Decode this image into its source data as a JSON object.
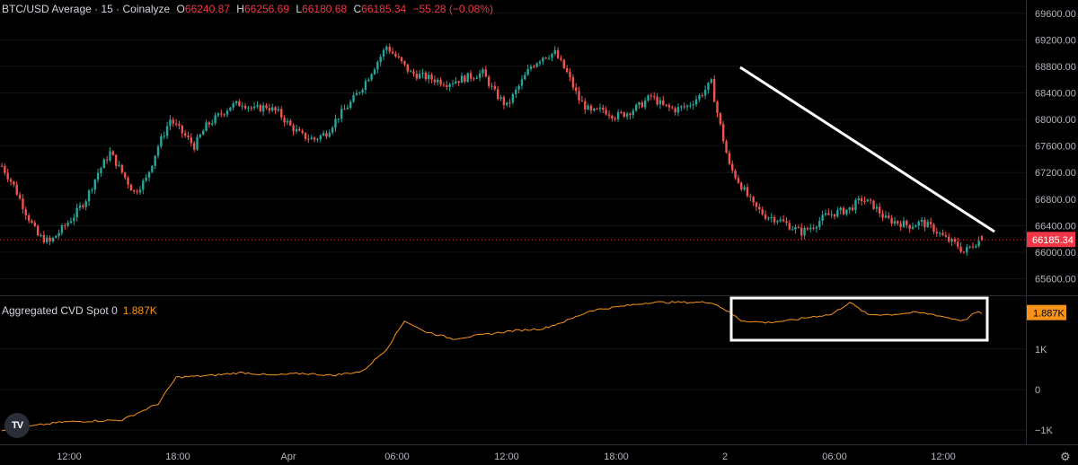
{
  "header": {
    "symbol": "BTC/USD Average · 15 · Coinalyze",
    "o_label": "O",
    "o": "66240.87",
    "h_label": "H",
    "h": "66256.69",
    "l_label": "L",
    "l": "66180.68",
    "c_label": "C",
    "c": "66185.34",
    "change": "−55.28 (−0.08%)"
  },
  "indicator": {
    "name": "Aggregated CVD Spot 0",
    "value": "1.887K"
  },
  "colors": {
    "up": "#26a69a",
    "down": "#ef5350",
    "cvd": "#f7931a",
    "price_label_bg": "#f23645",
    "cvd_label_bg": "#f7931a",
    "axis_text": "#b2b5be",
    "annotation": "#ffffff"
  },
  "icons": {
    "logo": "tradingview-logo-icon",
    "settings": "gear-icon"
  },
  "logo_text": "TV",
  "settings_glyph": "⚙",
  "chart_data": [
    {
      "type": "candlestick",
      "title": "BTC/USD Average · 15 · Coinalyze",
      "ylim": [
        65350,
        69800
      ],
      "y_ticks": [
        65600,
        66000,
        66400,
        66800,
        67200,
        67600,
        68000,
        68400,
        68800,
        69200,
        69600
      ],
      "y_tick_labels": [
        "65600.00",
        "66000.00",
        "66400.00",
        "66800.00",
        "67200.00",
        "67600.00",
        "68000.00",
        "68400.00",
        "68800.00",
        "69200.00",
        "69600.00"
      ],
      "x_tick_labels": [
        "12:00",
        "18:00",
        "Apr",
        "06:00",
        "12:00",
        "18:00",
        "2",
        "06:00",
        "12:00"
      ],
      "last_price": 66185.34,
      "last_price_label": "66185.34",
      "close_path": [
        [
          0,
          67300
        ],
        [
          4,
          67000
        ],
        [
          8,
          66600
        ],
        [
          12,
          66250
        ],
        [
          16,
          66150
        ],
        [
          20,
          66350
        ],
        [
          24,
          66550
        ],
        [
          28,
          66800
        ],
        [
          32,
          67200
        ],
        [
          36,
          67500
        ],
        [
          40,
          67200
        ],
        [
          44,
          66900
        ],
        [
          48,
          67100
        ],
        [
          52,
          67600
        ],
        [
          56,
          68000
        ],
        [
          60,
          67800
        ],
        [
          64,
          67600
        ],
        [
          68,
          67900
        ],
        [
          72,
          68050
        ],
        [
          76,
          68200
        ],
        [
          80,
          68250
        ],
        [
          84,
          68150
        ],
        [
          88,
          68200
        ],
        [
          92,
          68100
        ],
        [
          96,
          67900
        ],
        [
          100,
          67750
        ],
        [
          104,
          67700
        ],
        [
          108,
          67800
        ],
        [
          112,
          68050
        ],
        [
          116,
          68250
        ],
        [
          120,
          68500
        ],
        [
          124,
          68800
        ],
        [
          128,
          69100
        ],
        [
          132,
          68900
        ],
        [
          136,
          68700
        ],
        [
          140,
          68650
        ],
        [
          144,
          68600
        ],
        [
          148,
          68550
        ],
        [
          152,
          68600
        ],
        [
          156,
          68650
        ],
        [
          160,
          68700
        ],
        [
          164,
          68400
        ],
        [
          168,
          68200
        ],
        [
          172,
          68500
        ],
        [
          176,
          68800
        ],
        [
          180,
          68950
        ],
        [
          184,
          69000
        ],
        [
          188,
          68700
        ],
        [
          192,
          68300
        ],
        [
          196,
          68100
        ],
        [
          200,
          68150
        ],
        [
          204,
          68050
        ],
        [
          208,
          68100
        ],
        [
          212,
          68200
        ],
        [
          216,
          68350
        ],
        [
          220,
          68200
        ],
        [
          224,
          68150
        ],
        [
          228,
          68200
        ],
        [
          232,
          68350
        ],
        [
          236,
          68550
        ],
        [
          238,
          68100
        ],
        [
          240,
          67700
        ],
        [
          242,
          67300
        ],
        [
          246,
          67000
        ],
        [
          250,
          66700
        ],
        [
          254,
          66550
        ],
        [
          258,
          66500
        ],
        [
          262,
          66400
        ],
        [
          266,
          66300
        ],
        [
          270,
          66400
        ],
        [
          274,
          66550
        ],
        [
          278,
          66600
        ],
        [
          282,
          66650
        ],
        [
          286,
          66800
        ],
        [
          290,
          66700
        ],
        [
          294,
          66500
        ],
        [
          298,
          66450
        ],
        [
          302,
          66400
        ],
        [
          306,
          66450
        ],
        [
          310,
          66350
        ],
        [
          314,
          66200
        ],
        [
          318,
          66100
        ],
        [
          320,
          66000
        ],
        [
          324,
          66150
        ],
        [
          326,
          66185
        ]
      ],
      "n_candles": 327
    },
    {
      "type": "line",
      "title": "Aggregated CVD Spot 0",
      "series": [
        {
          "name": "Aggregated CVD Spot 0",
          "values_path": [
            [
              0,
              -1000
            ],
            [
              20,
              -800
            ],
            [
              40,
              -750
            ],
            [
              52,
              -350
            ],
            [
              58,
              300
            ],
            [
              70,
              350
            ],
            [
              80,
              420
            ],
            [
              90,
              350
            ],
            [
              100,
              400
            ],
            [
              110,
              350
            ],
            [
              120,
              450
            ],
            [
              128,
              1000
            ],
            [
              134,
              1700
            ],
            [
              140,
              1450
            ],
            [
              150,
              1250
            ],
            [
              160,
              1350
            ],
            [
              170,
              1450
            ],
            [
              180,
              1500
            ],
            [
              188,
              1700
            ],
            [
              196,
              1950
            ],
            [
              206,
              2050
            ],
            [
              216,
              2150
            ],
            [
              226,
              2150
            ],
            [
              236,
              2150
            ],
            [
              240,
              2000
            ],
            [
              246,
              1700
            ],
            [
              254,
              1650
            ],
            [
              262,
              1700
            ],
            [
              270,
              1800
            ],
            [
              276,
              1850
            ],
            [
              282,
              2150
            ],
            [
              288,
              1850
            ],
            [
              296,
              1850
            ],
            [
              304,
              1900
            ],
            [
              310,
              1850
            ],
            [
              316,
              1750
            ],
            [
              320,
              1700
            ],
            [
              324,
              1900
            ],
            [
              326,
              1887
            ]
          ]
        }
      ],
      "ylim": [
        -1350,
        2300
      ],
      "y_tick_labels": [
        "−1K",
        "0",
        "1K"
      ],
      "y_ticks": [
        -1000,
        0,
        1000
      ],
      "last_value": 1887,
      "last_value_label": "1.887K"
    }
  ]
}
